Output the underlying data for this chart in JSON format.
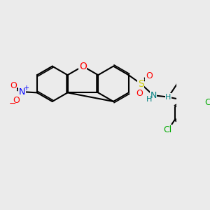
{
  "bg_color": "#ebebeb",
  "atom_colors": {
    "O": "#ff0000",
    "N": "#0000ff",
    "S": "#cccc00",
    "Cl": "#00aa00",
    "C": "#000000",
    "H": "#000000",
    "Nplus": "#0000ff",
    "Ominus": "#ff0000"
  },
  "bond_color": "#000000",
  "bond_width": 1.5,
  "font_size": 9,
  "figsize": [
    3.0,
    3.0
  ],
  "dpi": 100
}
